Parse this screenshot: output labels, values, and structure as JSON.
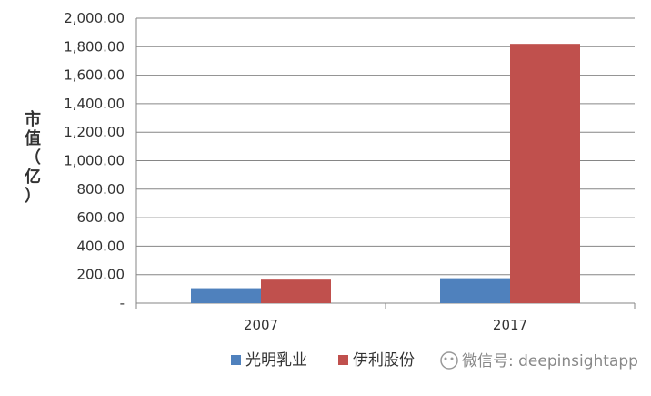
{
  "chart_data": {
    "type": "bar",
    "categories": [
      "2007",
      "2017"
    ],
    "series": [
      {
        "name": "光明乳业",
        "values": [
          105,
          175
        ],
        "color": "#4f81bd"
      },
      {
        "name": "伊利股份",
        "values": [
          165,
          1820
        ],
        "color": "#c0504d"
      }
    ],
    "ylim": [
      0,
      2000
    ],
    "yticks": [
      "-",
      "200.00",
      "400.00",
      "600.00",
      "800.00",
      "1,000.00",
      "1,200.00",
      "1,400.00",
      "1,600.00",
      "1,800.00",
      "2,000.00"
    ],
    "ylabel": [
      "市",
      "值",
      "（",
      "亿",
      "）"
    ],
    "xlabel": "",
    "grid": true,
    "legend_position": "bottom"
  },
  "watermark": "微信号: deepinsightapp"
}
